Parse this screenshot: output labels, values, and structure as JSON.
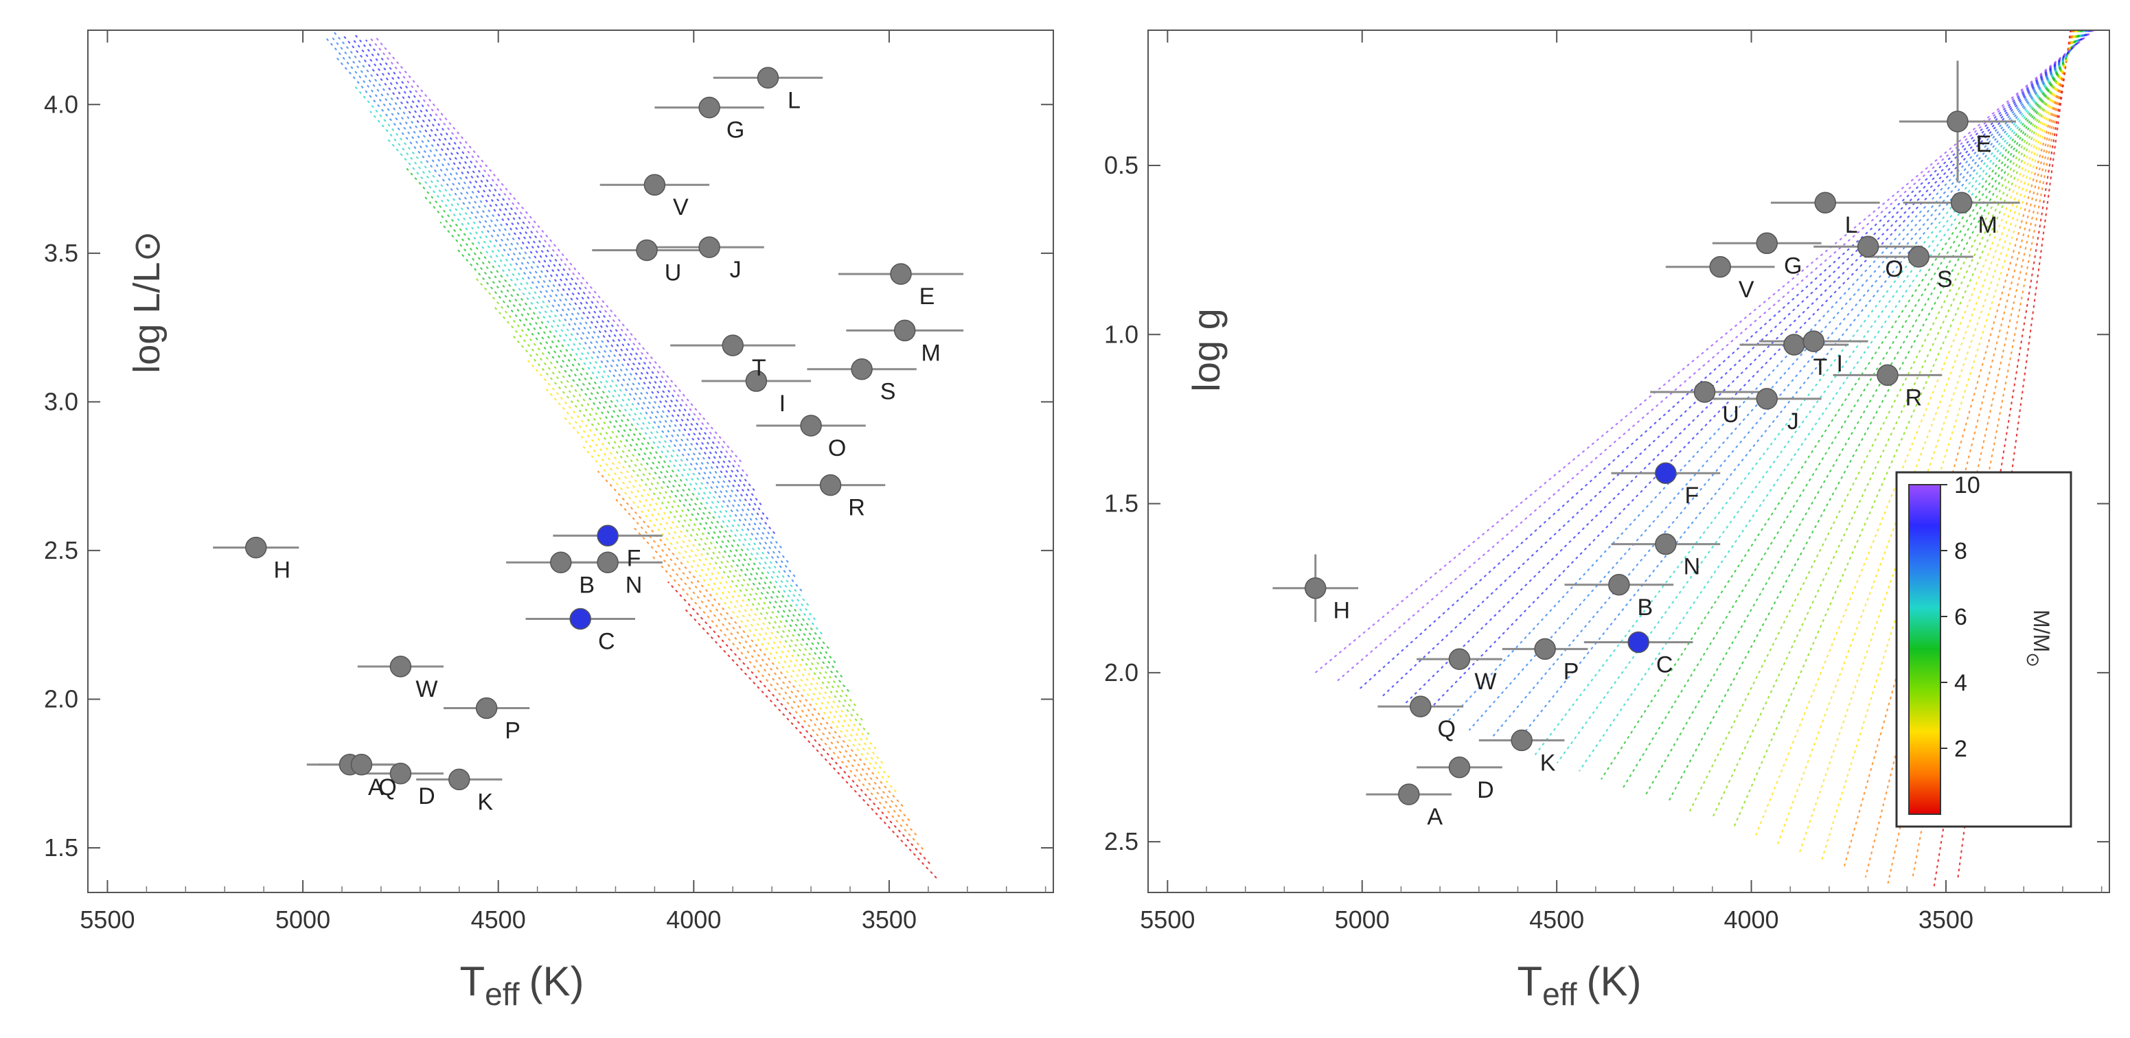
{
  "colors": {
    "star_gray": "#7a7a7a",
    "star_blue": "#2b36e0",
    "error_bar": "#8a8a8a",
    "frame": "#555555"
  },
  "colorbar": {
    "label_main": "M/M",
    "label_sub": "⊙",
    "ticks": [
      "2",
      "4",
      "6",
      "8",
      "10"
    ],
    "stops": [
      "#e00000",
      "#ff7a00",
      "#ffe000",
      "#7ddc00",
      "#13c020",
      "#20d6c8",
      "#2a7cf0",
      "#2b2bff",
      "#9b4dff"
    ]
  },
  "chart_data": [
    {
      "type": "scatter",
      "panel": "left",
      "xlabel_main": "T",
      "xlabel_sub": "eff",
      "xlabel_unit": "(K)",
      "ylabel": "log L/L⊙",
      "xlim": [
        5550,
        3080
      ],
      "ylim": [
        1.35,
        4.25
      ],
      "xticks": [
        5500,
        5000,
        4500,
        4000,
        3500
      ],
      "xtick_labels": [
        "5500",
        "5000",
        "4500",
        "4000",
        "3500"
      ],
      "yticks": [
        1.5,
        2.0,
        2.5,
        3.0,
        3.5,
        4.0
      ],
      "ytick_labels": [
        "1.5",
        "2.0",
        "2.5",
        "3.0",
        "3.5",
        "4.0"
      ],
      "stars": [
        {
          "label": "L",
          "teff": 3810,
          "y": 4.09,
          "xerr": 140,
          "color": "gray"
        },
        {
          "label": "G",
          "teff": 3960,
          "y": 3.99,
          "xerr": 140,
          "color": "gray"
        },
        {
          "label": "V",
          "teff": 4100,
          "y": 3.73,
          "xerr": 140,
          "color": "gray"
        },
        {
          "label": "U",
          "teff": 4120,
          "y": 3.51,
          "xerr": 140,
          "color": "gray"
        },
        {
          "label": "J",
          "teff": 3960,
          "y": 3.52,
          "xerr": 140,
          "color": "gray"
        },
        {
          "label": "E",
          "teff": 3470,
          "y": 3.43,
          "xerr": 160,
          "color": "gray"
        },
        {
          "label": "T",
          "teff": 3900,
          "y": 3.19,
          "xerr": 160,
          "color": "gray"
        },
        {
          "label": "M",
          "teff": 3460,
          "y": 3.24,
          "xerr": 150,
          "color": "gray"
        },
        {
          "label": "S",
          "teff": 3570,
          "y": 3.11,
          "xerr": 140,
          "color": "gray"
        },
        {
          "label": "I",
          "teff": 3840,
          "y": 3.07,
          "xerr": 140,
          "color": "gray"
        },
        {
          "label": "O",
          "teff": 3700,
          "y": 2.92,
          "xerr": 140,
          "color": "gray"
        },
        {
          "label": "R",
          "teff": 3650,
          "y": 2.72,
          "xerr": 140,
          "color": "gray"
        },
        {
          "label": "H",
          "teff": 5120,
          "y": 2.51,
          "xerr": 110,
          "color": "gray"
        },
        {
          "label": "F",
          "teff": 4220,
          "y": 2.55,
          "xerr": 140,
          "color": "blue"
        },
        {
          "label": "B",
          "teff": 4340,
          "y": 2.46,
          "xerr": 140,
          "color": "gray"
        },
        {
          "label": "N",
          "teff": 4220,
          "y": 2.46,
          "xerr": 140,
          "color": "gray"
        },
        {
          "label": "C",
          "teff": 4290,
          "y": 2.27,
          "xerr": 140,
          "color": "blue"
        },
        {
          "label": "W",
          "teff": 4750,
          "y": 2.11,
          "xerr": 110,
          "color": "gray"
        },
        {
          "label": "P",
          "teff": 4530,
          "y": 1.97,
          "xerr": 110,
          "color": "gray"
        },
        {
          "label": "A",
          "teff": 4880,
          "y": 1.78,
          "xerr": 110,
          "color": "gray"
        },
        {
          "label": "Q",
          "teff": 4850,
          "y": 1.78,
          "xerr": 110,
          "color": "gray"
        },
        {
          "label": "D",
          "teff": 4750,
          "y": 1.75,
          "xerr": 110,
          "color": "gray"
        },
        {
          "label": "K",
          "teff": 4600,
          "y": 1.73,
          "xerr": 110,
          "color": "gray"
        }
      ]
    },
    {
      "type": "scatter",
      "panel": "right",
      "xlabel_main": "T",
      "xlabel_sub": "eff",
      "xlabel_unit": "(K)",
      "ylabel": "log g",
      "xlim": [
        5550,
        3080
      ],
      "ylim": [
        2.65,
        0.1
      ],
      "y_inverted": true,
      "xticks": [
        5500,
        5000,
        4500,
        4000,
        3500
      ],
      "xtick_labels": [
        "5500",
        "5000",
        "4500",
        "4000",
        "3500"
      ],
      "yticks": [
        0.5,
        1.0,
        1.5,
        2.0,
        2.5
      ],
      "ytick_labels": [
        "0.5",
        "1.0",
        "1.5",
        "2.0",
        "2.5"
      ],
      "stars": [
        {
          "label": "E",
          "teff": 3470,
          "y": 0.37,
          "xerr": 150,
          "yerr": 0.18,
          "color": "gray"
        },
        {
          "label": "L",
          "teff": 3810,
          "y": 0.61,
          "xerr": 140,
          "yerr": 0,
          "color": "gray"
        },
        {
          "label": "M",
          "teff": 3460,
          "y": 0.61,
          "xerr": 150,
          "yerr": 0,
          "color": "gray"
        },
        {
          "label": "G",
          "teff": 3960,
          "y": 0.73,
          "xerr": 140,
          "yerr": 0,
          "color": "gray"
        },
        {
          "label": "O",
          "teff": 3700,
          "y": 0.74,
          "xerr": 140,
          "yerr": 0,
          "color": "gray"
        },
        {
          "label": "S",
          "teff": 3570,
          "y": 0.77,
          "xerr": 140,
          "yerr": 0,
          "color": "gray"
        },
        {
          "label": "V",
          "teff": 4080,
          "y": 0.8,
          "xerr": 140,
          "yerr": 0,
          "color": "gray"
        },
        {
          "label": "T",
          "teff": 3890,
          "y": 1.03,
          "xerr": 140,
          "yerr": 0,
          "color": "gray"
        },
        {
          "label": "I",
          "teff": 3840,
          "y": 1.02,
          "xerr": 140,
          "yerr": 0,
          "color": "gray"
        },
        {
          "label": "R",
          "teff": 3650,
          "y": 1.12,
          "xerr": 140,
          "yerr": 0,
          "color": "gray"
        },
        {
          "label": "U",
          "teff": 4120,
          "y": 1.17,
          "xerr": 140,
          "yerr": 0,
          "color": "gray"
        },
        {
          "label": "J",
          "teff": 3960,
          "y": 1.19,
          "xerr": 140,
          "yerr": 0,
          "color": "gray"
        },
        {
          "label": "F",
          "teff": 4220,
          "y": 1.41,
          "xerr": 140,
          "yerr": 0,
          "color": "blue"
        },
        {
          "label": "N",
          "teff": 4220,
          "y": 1.62,
          "xerr": 140,
          "yerr": 0,
          "color": "gray"
        },
        {
          "label": "H",
          "teff": 5120,
          "y": 1.75,
          "xerr": 110,
          "yerr": 0.1,
          "color": "gray"
        },
        {
          "label": "B",
          "teff": 4340,
          "y": 1.74,
          "xerr": 140,
          "yerr": 0,
          "color": "gray"
        },
        {
          "label": "C",
          "teff": 4290,
          "y": 1.91,
          "xerr": 140,
          "yerr": 0,
          "color": "blue"
        },
        {
          "label": "W",
          "teff": 4750,
          "y": 1.96,
          "xerr": 110,
          "yerr": 0,
          "color": "gray"
        },
        {
          "label": "P",
          "teff": 4530,
          "y": 1.93,
          "xerr": 110,
          "yerr": 0,
          "color": "gray"
        },
        {
          "label": "Q",
          "teff": 4850,
          "y": 2.1,
          "xerr": 110,
          "yerr": 0,
          "color": "gray"
        },
        {
          "label": "K",
          "teff": 4590,
          "y": 2.2,
          "xerr": 110,
          "yerr": 0,
          "color": "gray"
        },
        {
          "label": "D",
          "teff": 4750,
          "y": 2.28,
          "xerr": 110,
          "yerr": 0,
          "color": "gray"
        },
        {
          "label": "A",
          "teff": 4880,
          "y": 2.36,
          "xerr": 110,
          "yerr": 0,
          "color": "gray"
        }
      ]
    }
  ]
}
